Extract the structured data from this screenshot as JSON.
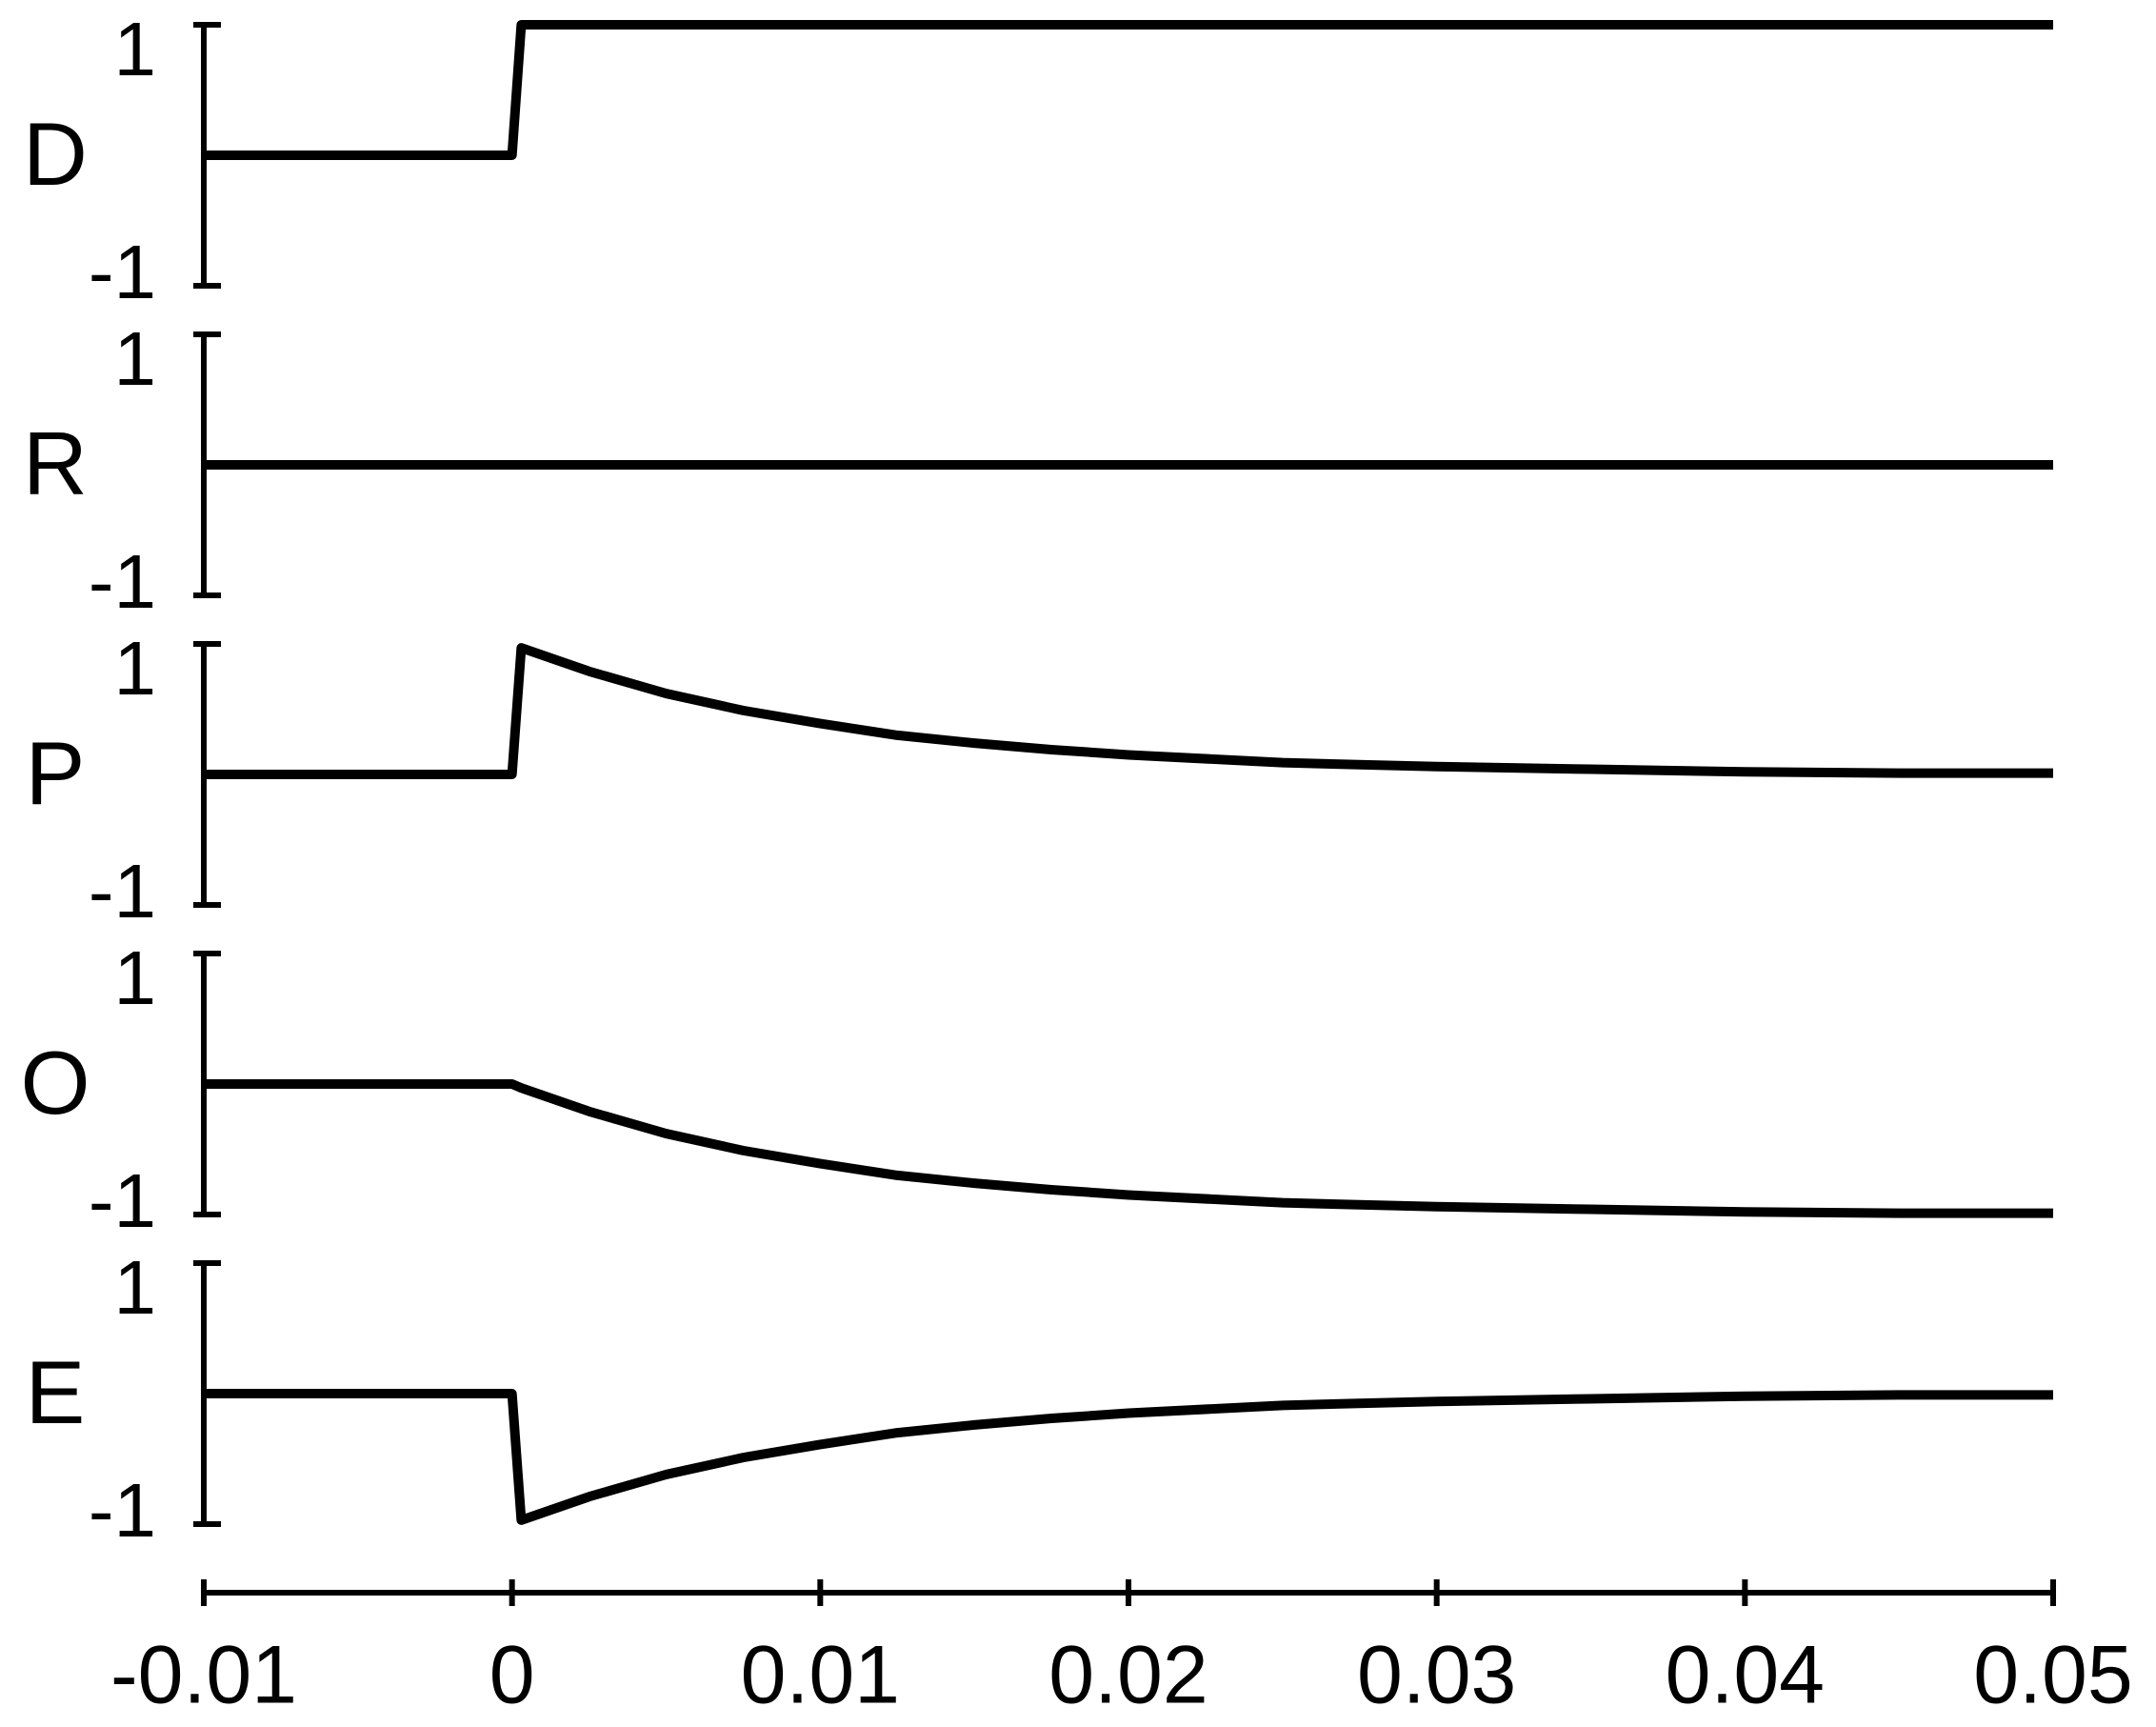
{
  "chart_data": {
    "type": "line",
    "x": [
      -0.01,
      0,
      0.0003,
      0.0025,
      0.005,
      0.0075,
      0.01,
      0.0125,
      0.015,
      0.0175,
      0.02,
      0.025,
      0.03,
      0.035,
      0.04,
      0.045,
      0.05
    ],
    "xlim": [
      -0.01,
      0.05
    ],
    "xticks": [
      -0.01,
      0,
      0.01,
      0.02,
      0.03,
      0.04,
      0.05
    ],
    "ylim": [
      -1,
      1
    ],
    "yticks": [
      -1,
      1
    ],
    "series": [
      {
        "name": "D",
        "color": "#000000",
        "values": [
          0,
          0,
          1,
          1,
          1,
          1,
          1,
          1,
          1,
          1,
          1,
          1,
          1,
          1,
          1,
          1,
          1
        ]
      },
      {
        "name": "R",
        "color": "#000000",
        "values": [
          0,
          0,
          0,
          0,
          0,
          0,
          0,
          0,
          0,
          0,
          0,
          0,
          0,
          0,
          0,
          0,
          0
        ]
      },
      {
        "name": "P",
        "color": "#000000",
        "values": [
          0,
          0,
          0.97,
          0.79,
          0.62,
          0.49,
          0.39,
          0.3,
          0.24,
          0.19,
          0.15,
          0.09,
          0.06,
          0.04,
          0.02,
          0.01,
          0.01
        ]
      },
      {
        "name": "O",
        "color": "#000000",
        "values": [
          0,
          0,
          -0.03,
          -0.21,
          -0.38,
          -0.51,
          -0.61,
          -0.7,
          -0.76,
          -0.81,
          -0.85,
          -0.91,
          -0.94,
          -0.96,
          -0.98,
          -0.99,
          -0.99
        ]
      },
      {
        "name": "E",
        "color": "#000000",
        "values": [
          0,
          0,
          -0.97,
          -0.79,
          -0.62,
          -0.49,
          -0.39,
          -0.3,
          -0.24,
          -0.19,
          -0.15,
          -0.09,
          -0.06,
          -0.04,
          -0.02,
          -0.01,
          -0.01
        ]
      }
    ]
  }
}
